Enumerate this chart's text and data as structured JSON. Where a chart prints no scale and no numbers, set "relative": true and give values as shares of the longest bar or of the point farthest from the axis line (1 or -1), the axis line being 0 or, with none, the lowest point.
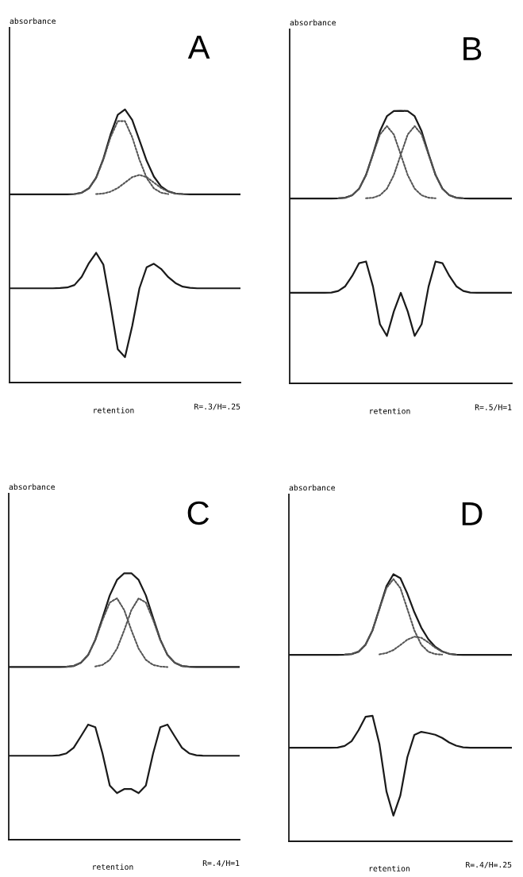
{
  "chart_data": [
    {
      "type": "line",
      "relative": true,
      "tick_labels": false,
      "marker": "none",
      "xlabel": "retention",
      "annotations": [
        "A",
        "R=.3/H=.25",
        "absorbance"
      ],
      "categories": [
        null,
        null,
        null,
        null,
        null,
        null,
        null,
        null,
        null,
        null,
        null,
        null,
        null,
        null,
        null,
        null,
        null,
        null,
        null,
        null,
        null,
        null,
        null,
        null,
        null,
        null,
        null,
        null,
        null,
        null,
        null,
        null,
        null
      ],
      "series": [
        {
          "color": "#1a1a1a",
          "line_style": "solid",
          "values": [
            0.689,
            0.689,
            0.689,
            0.689,
            0.689,
            0.689,
            0.689,
            0.689,
            0.689,
            0.69,
            0.695,
            0.711,
            0.75,
            0.819,
            0.908,
            0.98,
            1.0,
            0.961,
            0.887,
            0.812,
            0.754,
            0.718,
            0.7,
            0.692,
            0.69,
            0.689,
            0.689,
            0.689,
            0.689,
            0.689,
            0.689,
            0.689,
            0.689
          ]
        },
        {
          "color": "#555555",
          "line_style": "dotted",
          "values": [
            null,
            null,
            null,
            null,
            null,
            null,
            null,
            null,
            null,
            0.69,
            0.695,
            0.711,
            0.749,
            0.816,
            0.898,
            0.957,
            0.957,
            0.898,
            0.816,
            0.749,
            0.711,
            0.695,
            0.69,
            null,
            null,
            null,
            null,
            null,
            null,
            null,
            null,
            null,
            null
          ]
        },
        {
          "color": "#555555",
          "line_style": "dotted",
          "values": [
            null,
            null,
            null,
            null,
            null,
            null,
            null,
            null,
            null,
            null,
            null,
            null,
            0.69,
            0.692,
            0.699,
            0.712,
            0.732,
            0.752,
            0.76,
            0.752,
            0.732,
            0.712,
            0.699,
            0.692,
            0.69,
            null,
            null,
            null,
            null,
            null,
            null,
            null,
            null
          ]
        },
        {
          "color": "#1a1a1a",
          "line_style": "solid",
          "values": [
            0.345,
            0.345,
            0.345,
            0.345,
            0.345,
            0.345,
            0.345,
            0.346,
            0.348,
            0.357,
            0.387,
            0.437,
            0.475,
            0.432,
            0.283,
            0.122,
            0.093,
            0.207,
            0.345,
            0.422,
            0.435,
            0.416,
            0.386,
            0.364,
            0.351,
            0.347,
            0.345,
            0.345,
            0.345,
            0.345,
            0.345,
            0.345,
            0.345
          ]
        }
      ]
    },
    {
      "type": "line",
      "relative": true,
      "tick_labels": false,
      "marker": "none",
      "xlabel": "retention",
      "annotations": [
        "B",
        "R=.5/H=1",
        "absorbance"
      ],
      "categories": [
        null,
        null,
        null,
        null,
        null,
        null,
        null,
        null,
        null,
        null,
        null,
        null,
        null,
        null,
        null,
        null,
        null,
        null,
        null,
        null,
        null,
        null,
        null,
        null,
        null,
        null,
        null,
        null,
        null,
        null,
        null,
        null,
        null
      ],
      "series": [
        {
          "color": "#1a1a1a",
          "line_style": "solid",
          "values": [
            0.678,
            0.678,
            0.678,
            0.678,
            0.678,
            0.678,
            0.678,
            0.679,
            0.681,
            0.69,
            0.714,
            0.765,
            0.842,
            0.925,
            0.98,
            0.999,
            1.0,
            0.999,
            0.98,
            0.925,
            0.842,
            0.765,
            0.714,
            0.69,
            0.681,
            0.679,
            0.678,
            0.678,
            0.678,
            0.678,
            0.678,
            0.678,
            0.678
          ]
        },
        {
          "color": "#555555",
          "line_style": "dotted",
          "values": [
            null,
            null,
            null,
            null,
            null,
            null,
            null,
            0.679,
            0.681,
            0.69,
            0.714,
            0.764,
            0.839,
            0.913,
            0.944,
            0.913,
            0.839,
            0.764,
            0.714,
            0.69,
            0.681,
            0.679,
            null,
            null,
            null,
            null,
            null,
            null,
            null,
            null,
            null,
            null,
            null
          ]
        },
        {
          "color": "#555555",
          "line_style": "dotted",
          "values": [
            null,
            null,
            null,
            null,
            null,
            null,
            null,
            null,
            null,
            null,
            null,
            0.679,
            0.681,
            0.69,
            0.714,
            0.764,
            0.839,
            0.913,
            0.944,
            0.913,
            0.839,
            0.764,
            0.714,
            0.69,
            0.681,
            0.679,
            null,
            null,
            null,
            null,
            null,
            null,
            null
          ]
        },
        {
          "color": "#1a1a1a",
          "line_style": "solid",
          "values": [
            0.332,
            0.332,
            0.332,
            0.332,
            0.332,
            0.332,
            0.333,
            0.339,
            0.356,
            0.394,
            0.441,
            0.447,
            0.355,
            0.217,
            0.174,
            0.264,
            0.332,
            0.264,
            0.174,
            0.217,
            0.355,
            0.447,
            0.441,
            0.394,
            0.356,
            0.339,
            0.333,
            0.332,
            0.332,
            0.332,
            0.332,
            0.332,
            0.332
          ]
        }
      ]
    },
    {
      "type": "line",
      "relative": true,
      "tick_labels": false,
      "marker": "none",
      "xlabel": "retention",
      "annotations": [
        "C",
        "R=.4/H=1",
        "absorbance"
      ],
      "categories": [
        null,
        null,
        null,
        null,
        null,
        null,
        null,
        null,
        null,
        null,
        null,
        null,
        null,
        null,
        null,
        null,
        null,
        null,
        null,
        null,
        null,
        null,
        null,
        null,
        null,
        null,
        null,
        null,
        null,
        null,
        null,
        null,
        null
      ],
      "series": [
        {
          "color": "#1a1a1a",
          "line_style": "solid",
          "values": [
            0.648,
            0.648,
            0.648,
            0.648,
            0.648,
            0.648,
            0.648,
            0.648,
            0.649,
            0.652,
            0.664,
            0.693,
            0.751,
            0.833,
            0.917,
            0.975,
            1.0,
            1.0,
            0.975,
            0.917,
            0.833,
            0.751,
            0.693,
            0.664,
            0.652,
            0.649,
            0.648,
            0.648,
            0.648,
            0.648,
            0.648,
            0.648,
            0.648
          ]
        },
        {
          "color": "#555555",
          "line_style": "dotted",
          "values": [
            null,
            null,
            null,
            null,
            null,
            null,
            null,
            null,
            0.649,
            0.652,
            0.664,
            0.693,
            0.749,
            0.825,
            0.89,
            0.906,
            0.862,
            0.786,
            0.717,
            0.675,
            0.656,
            0.65,
            0.648,
            null,
            null,
            null,
            null,
            null,
            null,
            null,
            null,
            null,
            null
          ]
        },
        {
          "color": "#555555",
          "line_style": "dotted",
          "values": [
            null,
            null,
            null,
            null,
            null,
            null,
            null,
            null,
            null,
            null,
            null,
            null,
            0.65,
            0.656,
            0.675,
            0.717,
            0.786,
            0.862,
            0.906,
            0.89,
            0.825,
            0.749,
            0.693,
            0.664,
            0.652,
            0.649,
            null,
            null,
            null,
            null,
            null,
            null,
            null
          ]
        },
        {
          "color": "#1a1a1a",
          "line_style": "solid",
          "values": [
            0.315,
            0.315,
            0.315,
            0.315,
            0.315,
            0.315,
            0.315,
            0.317,
            0.324,
            0.345,
            0.388,
            0.432,
            0.422,
            0.323,
            0.203,
            0.175,
            0.19,
            0.19,
            0.175,
            0.203,
            0.323,
            0.422,
            0.432,
            0.388,
            0.345,
            0.324,
            0.317,
            0.315,
            0.315,
            0.315,
            0.315,
            0.315,
            0.315
          ]
        }
      ]
    },
    {
      "type": "line",
      "relative": true,
      "tick_labels": false,
      "marker": "none",
      "xlabel": "retention",
      "annotations": [
        "D",
        "R=.4/H=.25",
        "absorbance"
      ],
      "categories": [
        null,
        null,
        null,
        null,
        null,
        null,
        null,
        null,
        null,
        null,
        null,
        null,
        null,
        null,
        null,
        null,
        null,
        null,
        null,
        null,
        null,
        null,
        null,
        null,
        null,
        null,
        null,
        null,
        null,
        null,
        null,
        null,
        null
      ],
      "series": [
        {
          "color": "#1a1a1a",
          "line_style": "solid",
          "values": [
            0.698,
            0.698,
            0.698,
            0.698,
            0.698,
            0.698,
            0.698,
            0.698,
            0.699,
            0.701,
            0.71,
            0.736,
            0.79,
            0.872,
            0.955,
            1.0,
            0.985,
            0.927,
            0.858,
            0.8,
            0.757,
            0.728,
            0.711,
            0.702,
            0.699,
            0.698,
            0.698,
            0.698,
            0.698,
            0.698,
            0.698,
            0.698,
            0.698
          ]
        },
        {
          "color": "#555555",
          "line_style": "dotted",
          "values": [
            null,
            null,
            null,
            null,
            null,
            null,
            null,
            null,
            0.699,
            0.701,
            0.71,
            0.736,
            0.79,
            0.87,
            0.948,
            0.982,
            0.948,
            0.87,
            0.79,
            0.736,
            0.71,
            0.701,
            0.699,
            null,
            null,
            null,
            null,
            null,
            null,
            null,
            null,
            null,
            null
          ]
        },
        {
          "color": "#555555",
          "line_style": "dotted",
          "values": [
            null,
            null,
            null,
            null,
            null,
            null,
            null,
            null,
            null,
            null,
            null,
            null,
            null,
            0.7,
            0.705,
            0.716,
            0.735,
            0.755,
            0.766,
            0.762,
            0.745,
            0.725,
            0.71,
            0.702,
            0.699,
            null,
            null,
            null,
            null,
            null,
            null,
            null,
            null
          ]
        },
        {
          "color": "#1a1a1a",
          "line_style": "solid",
          "values": [
            0.35,
            0.35,
            0.35,
            0.35,
            0.35,
            0.35,
            0.35,
            0.351,
            0.357,
            0.375,
            0.416,
            0.466,
            0.47,
            0.363,
            0.187,
            0.096,
            0.172,
            0.315,
            0.398,
            0.41,
            0.405,
            0.399,
            0.387,
            0.37,
            0.358,
            0.352,
            0.35,
            0.35,
            0.35,
            0.35,
            0.35,
            0.35,
            0.35
          ]
        }
      ]
    }
  ]
}
